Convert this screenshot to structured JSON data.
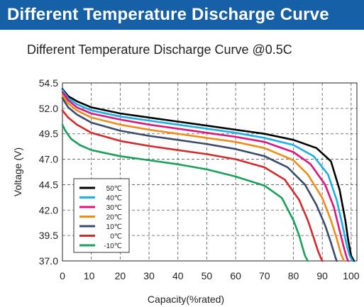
{
  "header": {
    "title": "Different Temperature Discharge Curve"
  },
  "colors": {
    "banner": "#1660a8"
  },
  "chart_data": {
    "type": "line",
    "title": "Different Temperature Discharge Curve @0.5C",
    "xlabel": "Capacity(%rated)",
    "ylabel": "Voltage (V)",
    "xlim": [
      0,
      102
    ],
    "ylim": [
      37.0,
      54.5
    ],
    "xticks": [
      0,
      10,
      20,
      30,
      40,
      50,
      60,
      70,
      80,
      90,
      100
    ],
    "yticks": [
      37.0,
      39.5,
      42.0,
      44.5,
      47.0,
      49.5,
      52.0,
      54.5
    ],
    "grid": true,
    "legend": "bottom-left",
    "series": [
      {
        "name": "50℃",
        "color": "#000000",
        "x": [
          0,
          2,
          5,
          10,
          20,
          30,
          40,
          50,
          60,
          70,
          80,
          88,
          93,
          96,
          98,
          99,
          100,
          101
        ],
        "y": [
          53.9,
          53.2,
          52.7,
          52.1,
          51.5,
          51.1,
          50.7,
          50.3,
          49.9,
          49.5,
          48.9,
          48.1,
          46.8,
          44.0,
          41.0,
          39.0,
          37.5,
          37.0
        ]
      },
      {
        "name": "40℃",
        "color": "#1ab0e8",
        "x": [
          0,
          2,
          5,
          10,
          20,
          30,
          40,
          50,
          60,
          70,
          80,
          87,
          92,
          95,
          97,
          98.5,
          99.5,
          100.5
        ],
        "y": [
          53.8,
          53.0,
          52.4,
          51.8,
          51.2,
          50.8,
          50.4,
          50.0,
          49.6,
          49.1,
          48.4,
          47.3,
          45.5,
          43.0,
          40.5,
          38.5,
          37.5,
          37.0
        ]
      },
      {
        "name": "30℃",
        "color": "#e0147e",
        "x": [
          0,
          2,
          5,
          10,
          20,
          30,
          40,
          50,
          60,
          70,
          80,
          86,
          91,
          94,
          96,
          97.5,
          98.5,
          99
        ],
        "y": [
          53.6,
          52.8,
          52.1,
          51.5,
          50.9,
          50.4,
          50.0,
          49.6,
          49.2,
          48.7,
          47.7,
          46.5,
          44.5,
          42.3,
          40.0,
          38.3,
          37.3,
          37.0
        ]
      },
      {
        "name": "20℃",
        "color": "#f08c1a",
        "x": [
          0,
          2,
          5,
          10,
          20,
          30,
          40,
          50,
          60,
          70,
          80,
          85,
          90,
          93,
          95,
          96.5,
          97.5
        ],
        "y": [
          53.3,
          52.5,
          51.8,
          51.1,
          50.4,
          49.9,
          49.5,
          49.1,
          48.7,
          48.1,
          46.9,
          45.5,
          43.2,
          41.0,
          39.2,
          37.7,
          37.0
        ]
      },
      {
        "name": "10℃",
        "color": "#3a4b6e",
        "x": [
          0,
          2,
          5,
          10,
          20,
          30,
          40,
          50,
          60,
          70,
          78,
          84,
          88,
          91,
          93,
          94.5,
          95
        ],
        "y": [
          53.0,
          52.1,
          51.4,
          50.6,
          49.8,
          49.3,
          48.9,
          48.5,
          48.0,
          47.3,
          46.2,
          44.5,
          42.5,
          40.5,
          38.8,
          37.4,
          37.0
        ]
      },
      {
        "name": "0℃",
        "color": "#d42a2a",
        "x": [
          0,
          2,
          5,
          10,
          20,
          30,
          40,
          50,
          60,
          70,
          77,
          82,
          85,
          87,
          88.5,
          89.5,
          90
        ],
        "y": [
          51.8,
          51.1,
          50.4,
          49.6,
          48.8,
          48.3,
          47.9,
          47.5,
          47.0,
          46.2,
          45.0,
          43.0,
          41.0,
          39.3,
          38.0,
          37.3,
          37.0
        ]
      },
      {
        "name": "-10℃",
        "color": "#1aa05a",
        "x": [
          0,
          1,
          3,
          6,
          10,
          20,
          30,
          40,
          50,
          60,
          70,
          76,
          80,
          82,
          83,
          84,
          85
        ],
        "y": [
          50.4,
          49.8,
          49.0,
          48.4,
          47.9,
          47.3,
          46.9,
          46.5,
          46.0,
          45.3,
          44.4,
          43.2,
          41.0,
          39.5,
          38.5,
          37.5,
          37.0
        ]
      }
    ]
  }
}
